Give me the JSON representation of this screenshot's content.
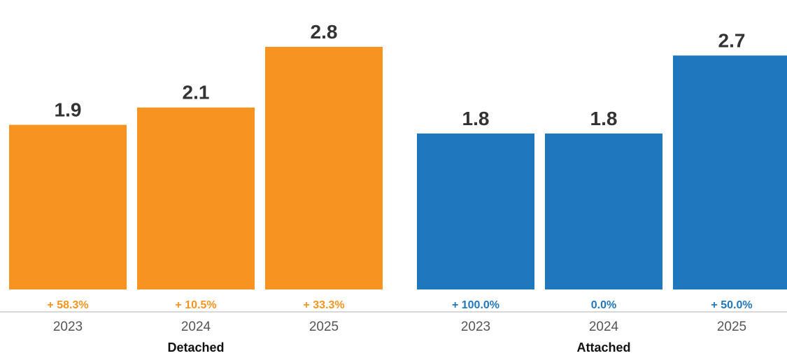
{
  "chart_data": {
    "type": "bar",
    "ylim": [
      0,
      3.05
    ],
    "grid": false,
    "groups": [
      {
        "name": "Detached",
        "color": "#f79421",
        "categories": [
          "2023",
          "2024",
          "2025"
        ],
        "values": [
          1.9,
          2.1,
          2.8
        ],
        "value_labels": [
          "1.9",
          "2.1",
          "2.8"
        ],
        "changes": [
          "+ 58.3%",
          "+ 10.5%",
          "+ 33.3%"
        ]
      },
      {
        "name": "Attached",
        "color": "#1f77bd",
        "categories": [
          "2023",
          "2024",
          "2025"
        ],
        "values": [
          1.8,
          1.8,
          2.7
        ],
        "value_labels": [
          "1.8",
          "1.8",
          "2.7"
        ],
        "changes": [
          "+ 100.0%",
          "0.0%",
          "+ 50.0%"
        ]
      }
    ]
  }
}
